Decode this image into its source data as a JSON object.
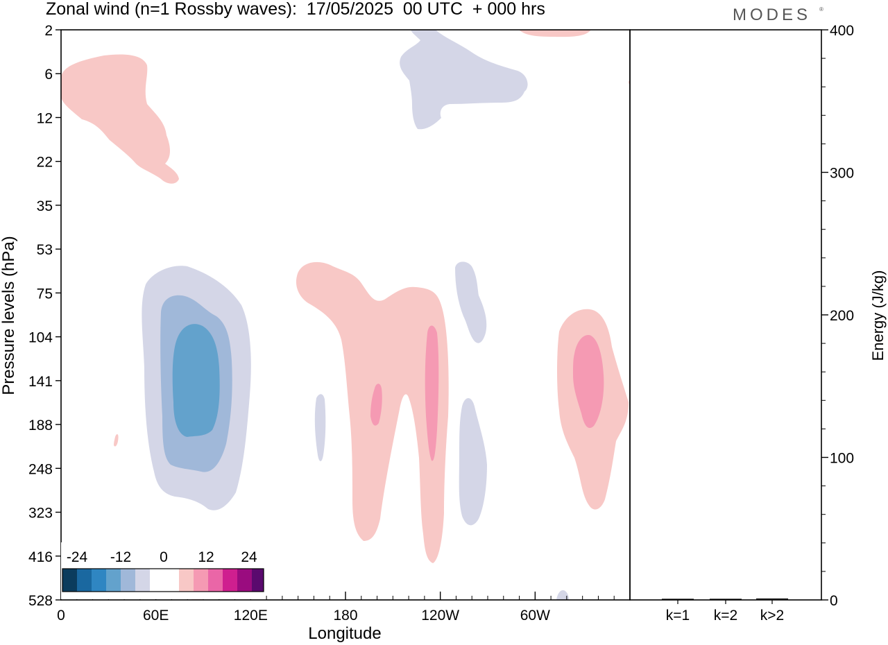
{
  "title": "Zonal wind (n=1 Rossby waves):  17/05/2025  00 UTC  + 000 hrs",
  "brand": "MODES",
  "brand_mark": "®",
  "colors": {
    "neg3": "#0b3c5d",
    "neg2": "#1a68a0",
    "neg1": "#2f86c2",
    "blue_strong": "#63a2cc",
    "blue_mid": "#a0b8d9",
    "blue_light": "#d4d6e7",
    "white": "#ffffff",
    "pink_light": "#f8c8c6",
    "pink_mid": "#f59ab3",
    "pink_strong": "#ea66a7",
    "pos2": "#cf1f8f",
    "pos3": "#9a0c7f",
    "pos4": "#5a0a6e"
  },
  "chart_data": [
    {
      "type": "heatmap",
      "title": "Zonal wind (n=1 Rossby waves):  17/05/2025  00 UTC  + 000 hrs",
      "xlabel": "Longitude",
      "ylabel": "Pressure levels (hPa)",
      "x_ticks": [
        "0",
        "60E",
        "120E",
        "180",
        "120W",
        "60W"
      ],
      "x_tick_degrees": [
        0,
        60,
        120,
        180,
        240,
        300
      ],
      "xlim": [
        0,
        360
      ],
      "y_ticks": [
        2,
        6,
        12,
        22,
        35,
        53,
        75,
        104,
        141,
        188,
        248,
        323,
        416,
        528
      ],
      "y_scale": "categorical levels, top to bottom",
      "colorbar": {
        "labels": [
          "-24",
          "-12",
          "0",
          "12",
          "24"
        ],
        "label_values": [
          -24,
          -12,
          0,
          12,
          24
        ],
        "levels": [
          -30,
          -25,
          -20,
          -15,
          -10,
          -5,
          5,
          10,
          15,
          20,
          25,
          30
        ],
        "placement": "bottom-left"
      },
      "features": [
        {
          "sign": "positive",
          "max_shade": "light",
          "lon_range": [
            0,
            70
          ],
          "level_range": [
            4,
            30
          ]
        },
        {
          "sign": "negative",
          "max_shade": "light",
          "lon_range": [
            212,
            296
          ],
          "level_range": [
            2,
            14
          ]
        },
        {
          "sign": "positive",
          "max_shade": "light",
          "lon_range": [
            286,
            332
          ],
          "level_range": [
            2,
            3
          ]
        },
        {
          "sign": "negative",
          "max_shade": "strong",
          "peak": -17,
          "lon_range": [
            50,
            118
          ],
          "level_range": [
            55,
            330
          ],
          "peak_lon": 82,
          "peak_level": 141
        },
        {
          "sign": "positive",
          "max_shade": "medium",
          "peak": 12,
          "lon_range": [
            148,
            246
          ],
          "level_range": [
            53,
            430
          ],
          "peak_lon": 235,
          "peak_level": 160
        },
        {
          "sign": "negative",
          "max_shade": "light",
          "lon_range": [
            249,
            266
          ],
          "level_range": [
            53,
            110
          ]
        },
        {
          "sign": "negative",
          "max_shade": "light",
          "lon_range": [
            170,
            178
          ],
          "level_range": [
            150,
            250
          ]
        },
        {
          "sign": "negative",
          "max_shade": "light",
          "lon_range": [
            251,
            270
          ],
          "level_range": [
            150,
            330
          ]
        },
        {
          "sign": "positive",
          "max_shade": "medium",
          "peak": 12,
          "lon_range": [
            314,
            360
          ],
          "level_range": [
            80,
            330
          ],
          "peak_lon": 332,
          "peak_level": 141
        }
      ]
    },
    {
      "type": "bar",
      "ylabel": "Energy (J/kg)",
      "categories": [
        "k=1",
        "k=2",
        "k>2"
      ],
      "values": [
        0.3,
        0.3,
        0.5
      ],
      "ylim": [
        0,
        400
      ],
      "y_ticks": [
        0,
        100,
        200,
        300,
        400
      ]
    }
  ],
  "x_axis_label": "Longitude",
  "y_axis_label": "Pressure levels (hPa)",
  "y2_axis_label": "Energy (J/kg)"
}
